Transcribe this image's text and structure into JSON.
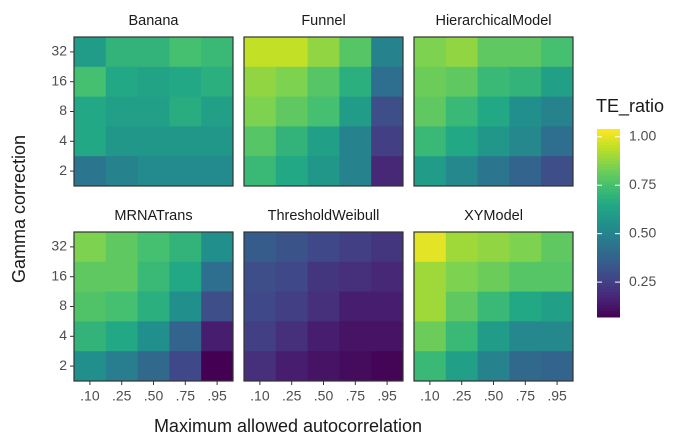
{
  "chart_data": {
    "type": "heatmap",
    "colormap": "viridis",
    "x_label": "Maximum allowed autocorrelation",
    "y_label": "Gamma correction",
    "legend_title": "TE_ratio",
    "x_categories": [
      ".10",
      ".25",
      ".50",
      ".75",
      ".95"
    ],
    "y_categories": [
      "32",
      "16",
      "8",
      "4",
      "2"
    ],
    "color_limits": [
      0.07,
      1.04
    ],
    "color_ticks": [
      {
        "value": 1.0,
        "label": "1.00"
      },
      {
        "value": 0.75,
        "label": "0.75"
      },
      {
        "value": 0.5,
        "label": "0.50"
      },
      {
        "value": 0.25,
        "label": "0.25"
      }
    ],
    "panels": [
      {
        "title": "Banana",
        "values": [
          [
            0.6,
            0.7,
            0.7,
            0.75,
            0.72
          ],
          [
            0.75,
            0.65,
            0.63,
            0.65,
            0.68
          ],
          [
            0.65,
            0.62,
            0.62,
            0.67,
            0.62
          ],
          [
            0.65,
            0.58,
            0.58,
            0.58,
            0.58
          ],
          [
            0.45,
            0.5,
            0.53,
            0.53,
            0.53
          ]
        ]
      },
      {
        "title": "Funnel",
        "values": [
          [
            0.95,
            0.95,
            0.88,
            0.78,
            0.5
          ],
          [
            0.88,
            0.85,
            0.78,
            0.68,
            0.42
          ],
          [
            0.85,
            0.8,
            0.75,
            0.6,
            0.3
          ],
          [
            0.78,
            0.7,
            0.62,
            0.5,
            0.25
          ],
          [
            0.72,
            0.65,
            0.58,
            0.5,
            0.18
          ]
        ]
      },
      {
        "title": "HierarchicalModel",
        "values": [
          [
            0.85,
            0.88,
            0.8,
            0.8,
            0.75
          ],
          [
            0.82,
            0.8,
            0.72,
            0.7,
            0.62
          ],
          [
            0.8,
            0.72,
            0.65,
            0.55,
            0.5
          ],
          [
            0.72,
            0.65,
            0.58,
            0.52,
            0.42
          ],
          [
            0.6,
            0.52,
            0.45,
            0.38,
            0.3
          ]
        ]
      },
      {
        "title": "MRNATrans",
        "values": [
          [
            0.85,
            0.8,
            0.75,
            0.7,
            0.55
          ],
          [
            0.8,
            0.8,
            0.72,
            0.65,
            0.42
          ],
          [
            0.77,
            0.75,
            0.68,
            0.55,
            0.3
          ],
          [
            0.7,
            0.65,
            0.55,
            0.38,
            0.15
          ],
          [
            0.55,
            0.48,
            0.4,
            0.28,
            0.07
          ]
        ]
      },
      {
        "title": "ThresholdWeibull",
        "values": [
          [
            0.35,
            0.32,
            0.28,
            0.25,
            0.22
          ],
          [
            0.3,
            0.28,
            0.22,
            0.2,
            0.18
          ],
          [
            0.28,
            0.25,
            0.2,
            0.15,
            0.15
          ],
          [
            0.25,
            0.2,
            0.15,
            0.12,
            0.12
          ],
          [
            0.2,
            0.15,
            0.12,
            0.1,
            0.08
          ]
        ]
      },
      {
        "title": "XYModel",
        "values": [
          [
            1.0,
            0.9,
            0.88,
            0.85,
            0.8
          ],
          [
            0.9,
            0.85,
            0.82,
            0.78,
            0.78
          ],
          [
            0.9,
            0.8,
            0.72,
            0.65,
            0.62
          ],
          [
            0.82,
            0.72,
            0.6,
            0.52,
            0.52
          ],
          [
            0.72,
            0.62,
            0.5,
            0.4,
            0.38
          ]
        ]
      }
    ]
  }
}
